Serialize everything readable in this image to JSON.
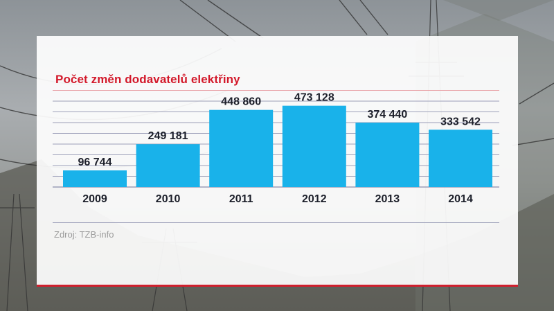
{
  "chart_data": {
    "type": "bar",
    "title": "Počet změn dodavatelů elektřiny",
    "categories": [
      "2009",
      "2010",
      "2011",
      "2012",
      "2013",
      "2014"
    ],
    "values": [
      96744,
      249181,
      448860,
      473128,
      374440,
      333542
    ],
    "value_labels": [
      "96 744",
      "249 181",
      "448 860",
      "473 128",
      "374 440",
      "333 542"
    ],
    "ylim": [
      0,
      500000
    ],
    "grid": true,
    "bar_color": "#19b2ea",
    "grid_color": "#9b9eb8",
    "source": "Zdroj: TZB-info"
  }
}
